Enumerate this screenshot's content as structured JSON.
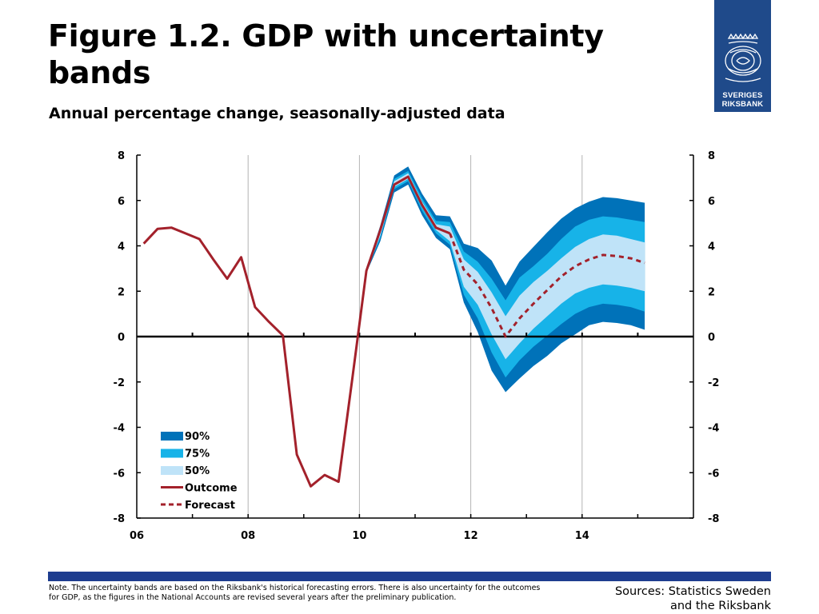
{
  "header": {
    "title": "Figure 1.2. GDP with uncertainty bands",
    "subtitle": "Annual percentage change, seasonally-adjusted data"
  },
  "logo": {
    "line1": "SVERIGES",
    "line2": "RIKSBANK",
    "background": "#1f4a8a"
  },
  "footer": {
    "note": "Note. The uncertainty bands are based on the Riksbank's historical forecasting errors. There is also uncertainty for the outcomes for GDP, as the figures in the National Accounts are revised several years after the preliminary publication.",
    "sources_line1": "Sources: Statistics Sweden",
    "sources_line2": "and the Riksbank",
    "bar_color": "#1e3d8f"
  },
  "chart_data": {
    "type": "area",
    "title": "Figure 1.2. GDP with uncertainty bands",
    "subtitle": "Annual percentage change, seasonally-adjusted data",
    "xlim": [
      2006,
      2016
    ],
    "ylim": [
      -8,
      8
    ],
    "x_ticks": [
      {
        "value": 2006,
        "label": "06"
      },
      {
        "value": 2008,
        "label": "08"
      },
      {
        "value": 2010,
        "label": "10"
      },
      {
        "value": 2012,
        "label": "12"
      },
      {
        "value": 2014,
        "label": "14"
      }
    ],
    "y_ticks": [
      -8,
      -6,
      -4,
      -2,
      0,
      2,
      4,
      6,
      8
    ],
    "y_tick_labels": [
      "-8",
      "-6",
      "-4",
      "-2",
      "0",
      "2",
      "4",
      "6",
      "8"
    ],
    "grid": "vertical",
    "legend_position": "bottom-left",
    "series": [
      {
        "name": "Outcome",
        "style": "solid",
        "color": "#a3212b",
        "x": [
          2006.125,
          2006.375,
          2006.625,
          2006.875,
          2007.125,
          2007.375,
          2007.625,
          2007.875,
          2008.125,
          2008.375,
          2008.625,
          2008.875,
          2009.125,
          2009.375,
          2009.625,
          2009.875,
          2010.125,
          2010.375,
          2010.625,
          2010.875,
          2011.125,
          2011.375,
          2011.625
        ],
        "y": [
          4.1,
          4.75,
          4.8,
          4.55,
          4.3,
          3.4,
          2.55,
          3.5,
          1.3,
          0.65,
          0.05,
          -5.2,
          -6.6,
          -6.1,
          -6.4,
          -1.8,
          2.9,
          4.7,
          6.7,
          7.05,
          5.8,
          4.8,
          4.55
        ]
      },
      {
        "name": "Forecast",
        "style": "dashed",
        "color": "#a3212b",
        "x": [
          2011.625,
          2011.875,
          2012.125,
          2012.375,
          2012.625,
          2012.875,
          2013.125,
          2013.375,
          2013.625,
          2013.875,
          2014.125,
          2014.375,
          2014.625,
          2014.875,
          2015.125
        ],
        "y": [
          4.55,
          2.95,
          2.3,
          1.25,
          0.0,
          0.8,
          1.45,
          2.05,
          2.65,
          3.1,
          3.4,
          3.6,
          3.55,
          3.45,
          3.25
        ]
      }
    ],
    "bands": [
      {
        "name": "90%",
        "color": "#0072b9",
        "x": [
          2010.125,
          2010.375,
          2010.625,
          2010.875,
          2011.125,
          2011.375,
          2011.625,
          2011.875,
          2012.125,
          2012.375,
          2012.625,
          2012.875,
          2013.125,
          2013.375,
          2013.625,
          2013.875,
          2014.125,
          2014.375,
          2014.625,
          2014.875,
          2015.125
        ],
        "lower": [
          2.8,
          4.2,
          6.35,
          6.7,
          5.35,
          4.35,
          3.85,
          1.5,
          0.2,
          -1.5,
          -2.45,
          -1.85,
          -1.3,
          -0.85,
          -0.3,
          0.1,
          0.5,
          0.65,
          0.6,
          0.5,
          0.3
        ],
        "upper": [
          3.0,
          4.9,
          7.1,
          7.5,
          6.3,
          5.35,
          5.3,
          4.1,
          3.9,
          3.35,
          2.25,
          3.3,
          3.95,
          4.6,
          5.2,
          5.65,
          5.95,
          6.15,
          6.1,
          6.0,
          5.9
        ]
      },
      {
        "name": "75%",
        "color": "#17b3e8",
        "x": [
          2010.125,
          2010.375,
          2010.625,
          2010.875,
          2011.125,
          2011.375,
          2011.625,
          2011.875,
          2012.125,
          2012.375,
          2012.625,
          2012.875,
          2013.125,
          2013.375,
          2013.625,
          2013.875,
          2014.125,
          2014.375,
          2014.625,
          2014.875,
          2015.125
        ],
        "lower": [
          2.85,
          4.35,
          6.5,
          6.85,
          5.55,
          4.55,
          4.05,
          1.85,
          0.8,
          -0.7,
          -1.8,
          -1.05,
          -0.45,
          0.05,
          0.55,
          1.0,
          1.3,
          1.45,
          1.4,
          1.3,
          1.1
        ],
        "upper": [
          2.95,
          4.75,
          6.95,
          7.3,
          6.1,
          5.1,
          5.05,
          3.75,
          3.3,
          2.55,
          1.6,
          2.6,
          3.1,
          3.65,
          4.3,
          4.85,
          5.15,
          5.3,
          5.25,
          5.15,
          5.05
        ]
      },
      {
        "name": "50%",
        "color": "#bfe3f8",
        "x": [
          2010.125,
          2010.375,
          2010.625,
          2010.875,
          2011.125,
          2011.375,
          2011.625,
          2011.875,
          2012.125,
          2012.375,
          2012.625,
          2012.875,
          2013.125,
          2013.375,
          2013.625,
          2013.875,
          2014.125,
          2014.375,
          2014.625,
          2014.875,
          2015.125
        ],
        "lower": [
          2.88,
          4.45,
          6.6,
          6.95,
          5.7,
          4.7,
          4.2,
          2.2,
          1.4,
          0.1,
          -1.0,
          -0.3,
          0.35,
          0.9,
          1.45,
          1.9,
          2.15,
          2.3,
          2.25,
          2.15,
          2.0
        ],
        "upper": [
          2.92,
          4.65,
          6.85,
          7.2,
          5.95,
          4.95,
          4.85,
          3.4,
          2.85,
          1.95,
          0.9,
          1.8,
          2.4,
          2.9,
          3.45,
          3.95,
          4.3,
          4.5,
          4.45,
          4.3,
          4.15
        ]
      }
    ]
  }
}
